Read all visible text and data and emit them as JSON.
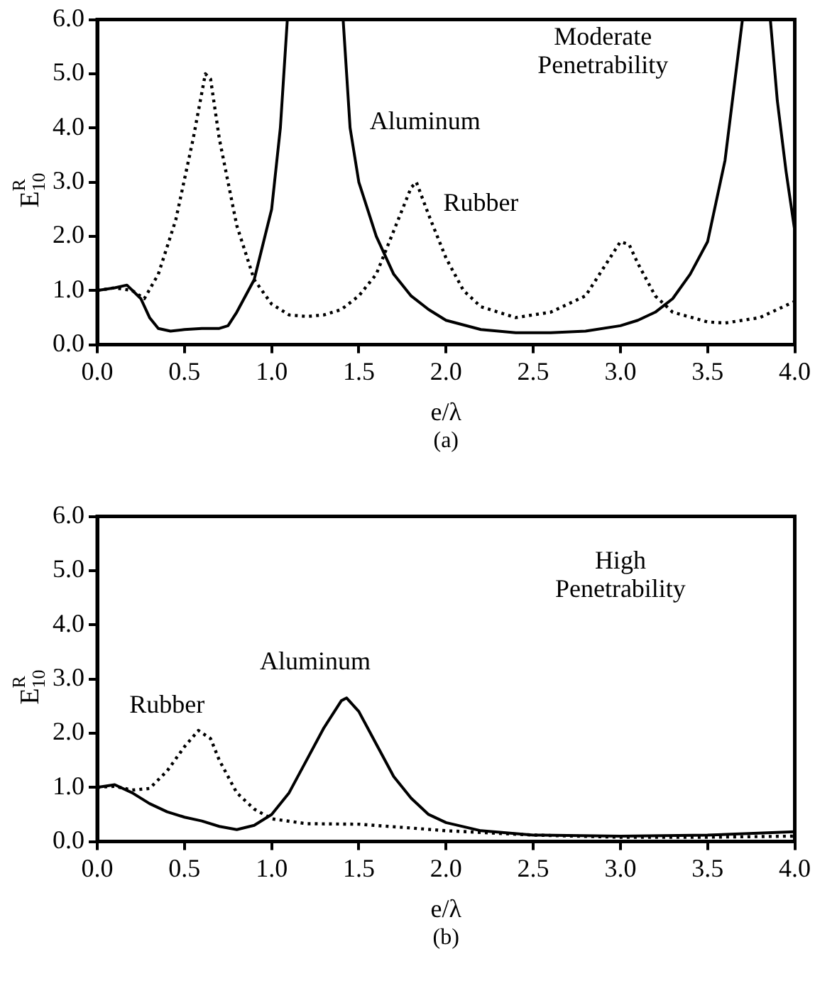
{
  "chart_data": [
    {
      "type": "line",
      "xlabel": "e/λ",
      "ylabel": "E$^{R}$$_{10}$",
      "xlim": [
        0,
        4
      ],
      "ylim": [
        0,
        6
      ],
      "xticks": [
        {
          "value": 0,
          "label": "0.0"
        },
        {
          "value": 0.5,
          "label": "0.5"
        },
        {
          "value": 1,
          "label": "1.0"
        },
        {
          "value": 1.5,
          "label": "1.5"
        },
        {
          "value": 2,
          "label": "2.0"
        },
        {
          "value": 2.5,
          "label": "2.5"
        },
        {
          "value": 3,
          "label": "3.0"
        },
        {
          "value": 3.5,
          "label": "3.5"
        },
        {
          "value": 4,
          "label": "4.0"
        }
      ],
      "yticks": [
        {
          "value": 0,
          "label": "0.0"
        },
        {
          "value": 1,
          "label": "1.0"
        },
        {
          "value": 2,
          "label": "2.0"
        },
        {
          "value": 3,
          "label": "3.0"
        },
        {
          "value": 4,
          "label": "4.0"
        },
        {
          "value": 5,
          "label": "5.0"
        },
        {
          "value": 6,
          "label": "6.0"
        }
      ],
      "grid": false,
      "legend": false,
      "marker": "none",
      "series": [
        {
          "color": "#000000",
          "line_style": "solid",
          "x": [
            0,
            0.1,
            0.17,
            0.25,
            0.3,
            0.35,
            0.42,
            0.5,
            0.6,
            0.7,
            0.75,
            0.8,
            0.9,
            1.0,
            1.05,
            1.09,
            1.25,
            1.41,
            1.45,
            1.5,
            1.6,
            1.7,
            1.8,
            1.9,
            2.0,
            2.2,
            2.4,
            2.6,
            2.8,
            3.0,
            3.1,
            3.2,
            3.3,
            3.4,
            3.5,
            3.6,
            3.7,
            3.78,
            3.86,
            3.9,
            3.95,
            4.0
          ],
          "values": [
            1.0,
            1.05,
            1.1,
            0.85,
            0.5,
            0.3,
            0.25,
            0.28,
            0.3,
            0.3,
            0.35,
            0.6,
            1.2,
            2.5,
            4.0,
            6.0,
            null,
            6.0,
            4.0,
            3.0,
            2.0,
            1.3,
            0.9,
            0.65,
            0.45,
            0.28,
            0.22,
            0.22,
            0.25,
            0.35,
            0.45,
            0.6,
            0.85,
            1.3,
            1.9,
            3.4,
            6.0,
            null,
            6.0,
            4.5,
            3.2,
            2.1
          ]
        },
        {
          "color": "#000000",
          "line_style": "dotted",
          "x": [
            0,
            0.1,
            0.2,
            0.27,
            0.35,
            0.45,
            0.55,
            0.62,
            0.65,
            0.7,
            0.8,
            0.9,
            1.0,
            1.1,
            1.2,
            1.3,
            1.4,
            1.5,
            1.6,
            1.7,
            1.8,
            1.83,
            1.9,
            2.0,
            2.1,
            2.2,
            2.4,
            2.6,
            2.8,
            2.9,
            3.0,
            3.05,
            3.1,
            3.2,
            3.3,
            3.5,
            3.6,
            3.8,
            4.0
          ],
          "values": [
            1.0,
            1.05,
            1.0,
            0.85,
            1.3,
            2.3,
            3.8,
            5.0,
            4.9,
            3.8,
            2.2,
            1.2,
            0.75,
            0.55,
            0.52,
            0.55,
            0.65,
            0.9,
            1.3,
            2.1,
            2.9,
            3.0,
            2.4,
            1.6,
            1.0,
            0.7,
            0.5,
            0.6,
            0.9,
            1.4,
            1.9,
            1.85,
            1.5,
            0.9,
            0.6,
            0.42,
            0.4,
            0.5,
            0.8
          ]
        }
      ],
      "annotations": [
        "Moderate\nPenetrability",
        "Aluminum",
        "Rubber",
        "(a)"
      ]
    },
    {
      "type": "line",
      "xlabel": "e/λ",
      "ylabel": "E$^{R}$$_{10}$",
      "xlim": [
        0,
        4
      ],
      "ylim": [
        0,
        6
      ],
      "xticks": [
        {
          "value": 0,
          "label": "0.0"
        },
        {
          "value": 0.5,
          "label": "0.5"
        },
        {
          "value": 1,
          "label": "1.0"
        },
        {
          "value": 1.5,
          "label": "1.5"
        },
        {
          "value": 2,
          "label": "2.0"
        },
        {
          "value": 2.5,
          "label": "2.5"
        },
        {
          "value": 3,
          "label": "3.0"
        },
        {
          "value": 3.5,
          "label": "3.5"
        },
        {
          "value": 4,
          "label": "4.0"
        }
      ],
      "yticks": [
        {
          "value": 0,
          "label": "0.0"
        },
        {
          "value": 1,
          "label": "1.0"
        },
        {
          "value": 2,
          "label": "2.0"
        },
        {
          "value": 3,
          "label": "3.0"
        },
        {
          "value": 4,
          "label": "4.0"
        },
        {
          "value": 5,
          "label": "5.0"
        },
        {
          "value": 6,
          "label": "6.0"
        }
      ],
      "grid": false,
      "legend": false,
      "marker": "none",
      "series": [
        {
          "color": "#000000",
          "line_style": "solid",
          "x": [
            0,
            0.1,
            0.2,
            0.3,
            0.4,
            0.5,
            0.6,
            0.7,
            0.8,
            0.9,
            1.0,
            1.1,
            1.2,
            1.3,
            1.4,
            1.43,
            1.5,
            1.6,
            1.7,
            1.8,
            1.9,
            2.0,
            2.2,
            2.5,
            3.0,
            3.5,
            4.0
          ],
          "values": [
            1.0,
            1.05,
            0.9,
            0.7,
            0.55,
            0.45,
            0.38,
            0.28,
            0.22,
            0.3,
            0.5,
            0.9,
            1.5,
            2.1,
            2.6,
            2.65,
            2.4,
            1.8,
            1.2,
            0.8,
            0.5,
            0.35,
            0.2,
            0.12,
            0.1,
            0.12,
            0.18
          ]
        },
        {
          "color": "#000000",
          "line_style": "dotted",
          "x": [
            0,
            0.1,
            0.2,
            0.3,
            0.4,
            0.5,
            0.58,
            0.65,
            0.7,
            0.8,
            0.9,
            1.0,
            1.2,
            1.5,
            1.8,
            2.0,
            2.5,
            3.0,
            3.5,
            4.0
          ],
          "values": [
            1.0,
            1.02,
            0.95,
            0.98,
            1.3,
            1.75,
            2.05,
            1.9,
            1.5,
            0.9,
            0.6,
            0.42,
            0.33,
            0.32,
            0.25,
            0.2,
            0.12,
            0.08,
            0.08,
            0.1
          ]
        }
      ],
      "annotations": [
        "High\nPenetrability",
        "Aluminum",
        "Rubber",
        "(b)"
      ]
    }
  ]
}
